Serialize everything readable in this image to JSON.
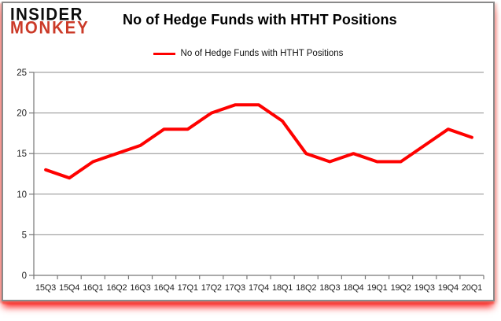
{
  "logo": {
    "line1": "INSIDER",
    "line2": "MONKEY"
  },
  "title": "No of Hedge Funds with HTHT Positions",
  "legend": {
    "label": "No of Hedge Funds with HTHT Positions"
  },
  "colors": {
    "series_line": "#fe0100",
    "logo_red": "#cb3a28",
    "logo_black": "#0d0d0d",
    "grid": "#8e8e8e",
    "axis": "#777777",
    "tick_text": "#1c1c1c"
  },
  "chart_data": {
    "type": "line",
    "title": "No of Hedge Funds with HTHT Positions",
    "categories": [
      "15Q3",
      "15Q4",
      "16Q1",
      "16Q2",
      "16Q3",
      "16Q4",
      "17Q1",
      "17Q2",
      "17Q3",
      "17Q4",
      "18Q1",
      "18Q2",
      "18Q3",
      "18Q4",
      "19Q1",
      "19Q2",
      "19Q3",
      "19Q4",
      "20Q1"
    ],
    "series": [
      {
        "name": "No of Hedge Funds with HTHT Positions",
        "values": [
          13,
          12,
          14,
          15,
          16,
          18,
          18,
          20,
          21,
          21,
          19,
          15,
          14,
          15,
          14,
          14,
          16,
          18,
          17
        ]
      }
    ],
    "xlabel": "",
    "ylabel": "",
    "ylim": [
      0,
      25
    ],
    "yticks": [
      0,
      5,
      10,
      15,
      20,
      25
    ],
    "grid": true,
    "legend_position": "top-center"
  }
}
